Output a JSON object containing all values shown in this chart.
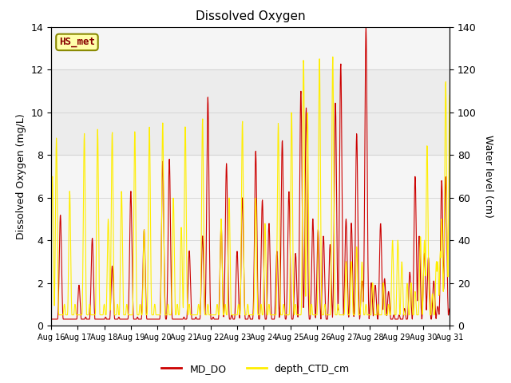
{
  "title": "Dissolved Oxygen",
  "ylabel_left": "Dissolved Oxygen (mg/L)",
  "ylabel_right": "Water level (cm)",
  "ylim_left": [
    0,
    14
  ],
  "ylim_right": [
    0,
    140
  ],
  "shade_band": [
    8,
    12
  ],
  "line1_color": "#cc0000",
  "line2_color": "#ffee00",
  "line1_label": "MD_DO",
  "line2_label": "depth_CTD_cm",
  "annotation_text": "HS_met",
  "annotation_color": "#880000",
  "annotation_bg": "#ffffaa",
  "annotation_border": "#888800",
  "xticklabels": [
    "Aug 16",
    "Aug 17",
    "Aug 18",
    "Aug 19",
    "Aug 20",
    "Aug 21",
    "Aug 22",
    "Aug 23",
    "Aug 24",
    "Aug 25",
    "Aug 26",
    "Aug 27",
    "Aug 28",
    "Aug 29",
    "Aug 30",
    "Aug 31"
  ],
  "background_color": "#ffffff",
  "plot_bg": "#f5f5f5",
  "grid_color": "#cccccc"
}
